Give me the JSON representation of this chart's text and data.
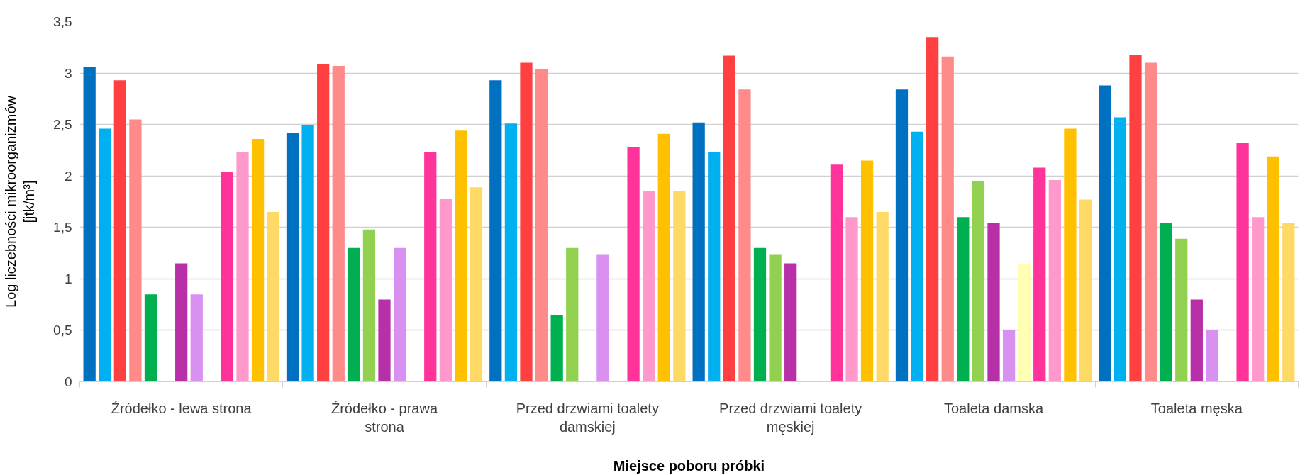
{
  "chart_data": {
    "type": "bar",
    "xlabel": "Miejsce poboru próbki",
    "ylabel": "Log liczebności mikroorganizmów [jtk/m³]",
    "categories": [
      "Źródełko - lewa strona",
      "Źródełko - prawa strona",
      "Przed drzwiami toalety damskiej",
      "Przed drzwiami toalety męskiej",
      "Toaleta damska",
      "Toaleta męska"
    ],
    "ylim": [
      0,
      3.5
    ],
    "yticks": [
      0,
      {
        "value": 0.5,
        "label": "0,5"
      },
      1,
      {
        "value": 1.5,
        "label": "1,5"
      },
      2,
      {
        "value": 2.5,
        "label": "2,5"
      },
      3,
      {
        "value": 3.5,
        "label": "3,5"
      }
    ],
    "grid": "y",
    "series": [
      {
        "color": "#0070c0",
        "values": [
          3.06,
          2.42,
          2.93,
          2.52,
          2.84,
          2.88
        ]
      },
      {
        "color": "#00b0f0",
        "values": [
          2.46,
          2.49,
          2.51,
          2.23,
          2.43,
          2.57
        ]
      },
      {
        "color": "#ff4040",
        "values": [
          2.93,
          3.09,
          3.1,
          3.17,
          3.35,
          3.18
        ]
      },
      {
        "color": "#ff8a8a",
        "values": [
          2.55,
          3.07,
          3.04,
          2.84,
          3.16,
          3.1
        ]
      },
      {
        "color": "#00b050",
        "values": [
          0.85,
          1.3,
          0.65,
          1.3,
          1.6,
          1.54
        ]
      },
      {
        "color": "#92d050",
        "values": [
          null,
          1.48,
          1.3,
          1.24,
          1.95,
          1.39
        ]
      },
      {
        "color": "#b830a8",
        "values": [
          1.15,
          0.8,
          null,
          1.15,
          1.54,
          0.8
        ]
      },
      {
        "color": "#d891f0",
        "values": [
          0.85,
          1.3,
          1.24,
          null,
          0.5,
          0.5
        ]
      },
      {
        "color": "#ffffb3",
        "values": [
          null,
          null,
          null,
          null,
          1.15,
          null
        ]
      },
      {
        "color": "#ff3399",
        "values": [
          2.04,
          2.23,
          2.28,
          2.11,
          2.08,
          2.32
        ]
      },
      {
        "color": "#ff99cc",
        "values": [
          2.23,
          1.78,
          1.85,
          1.6,
          1.96,
          1.6
        ]
      },
      {
        "color": "#ffc000",
        "values": [
          2.36,
          2.44,
          2.41,
          2.15,
          2.46,
          2.19
        ]
      },
      {
        "color": "#ffd966",
        "values": [
          1.65,
          1.89,
          1.85,
          1.65,
          1.77,
          1.54
        ]
      }
    ]
  }
}
